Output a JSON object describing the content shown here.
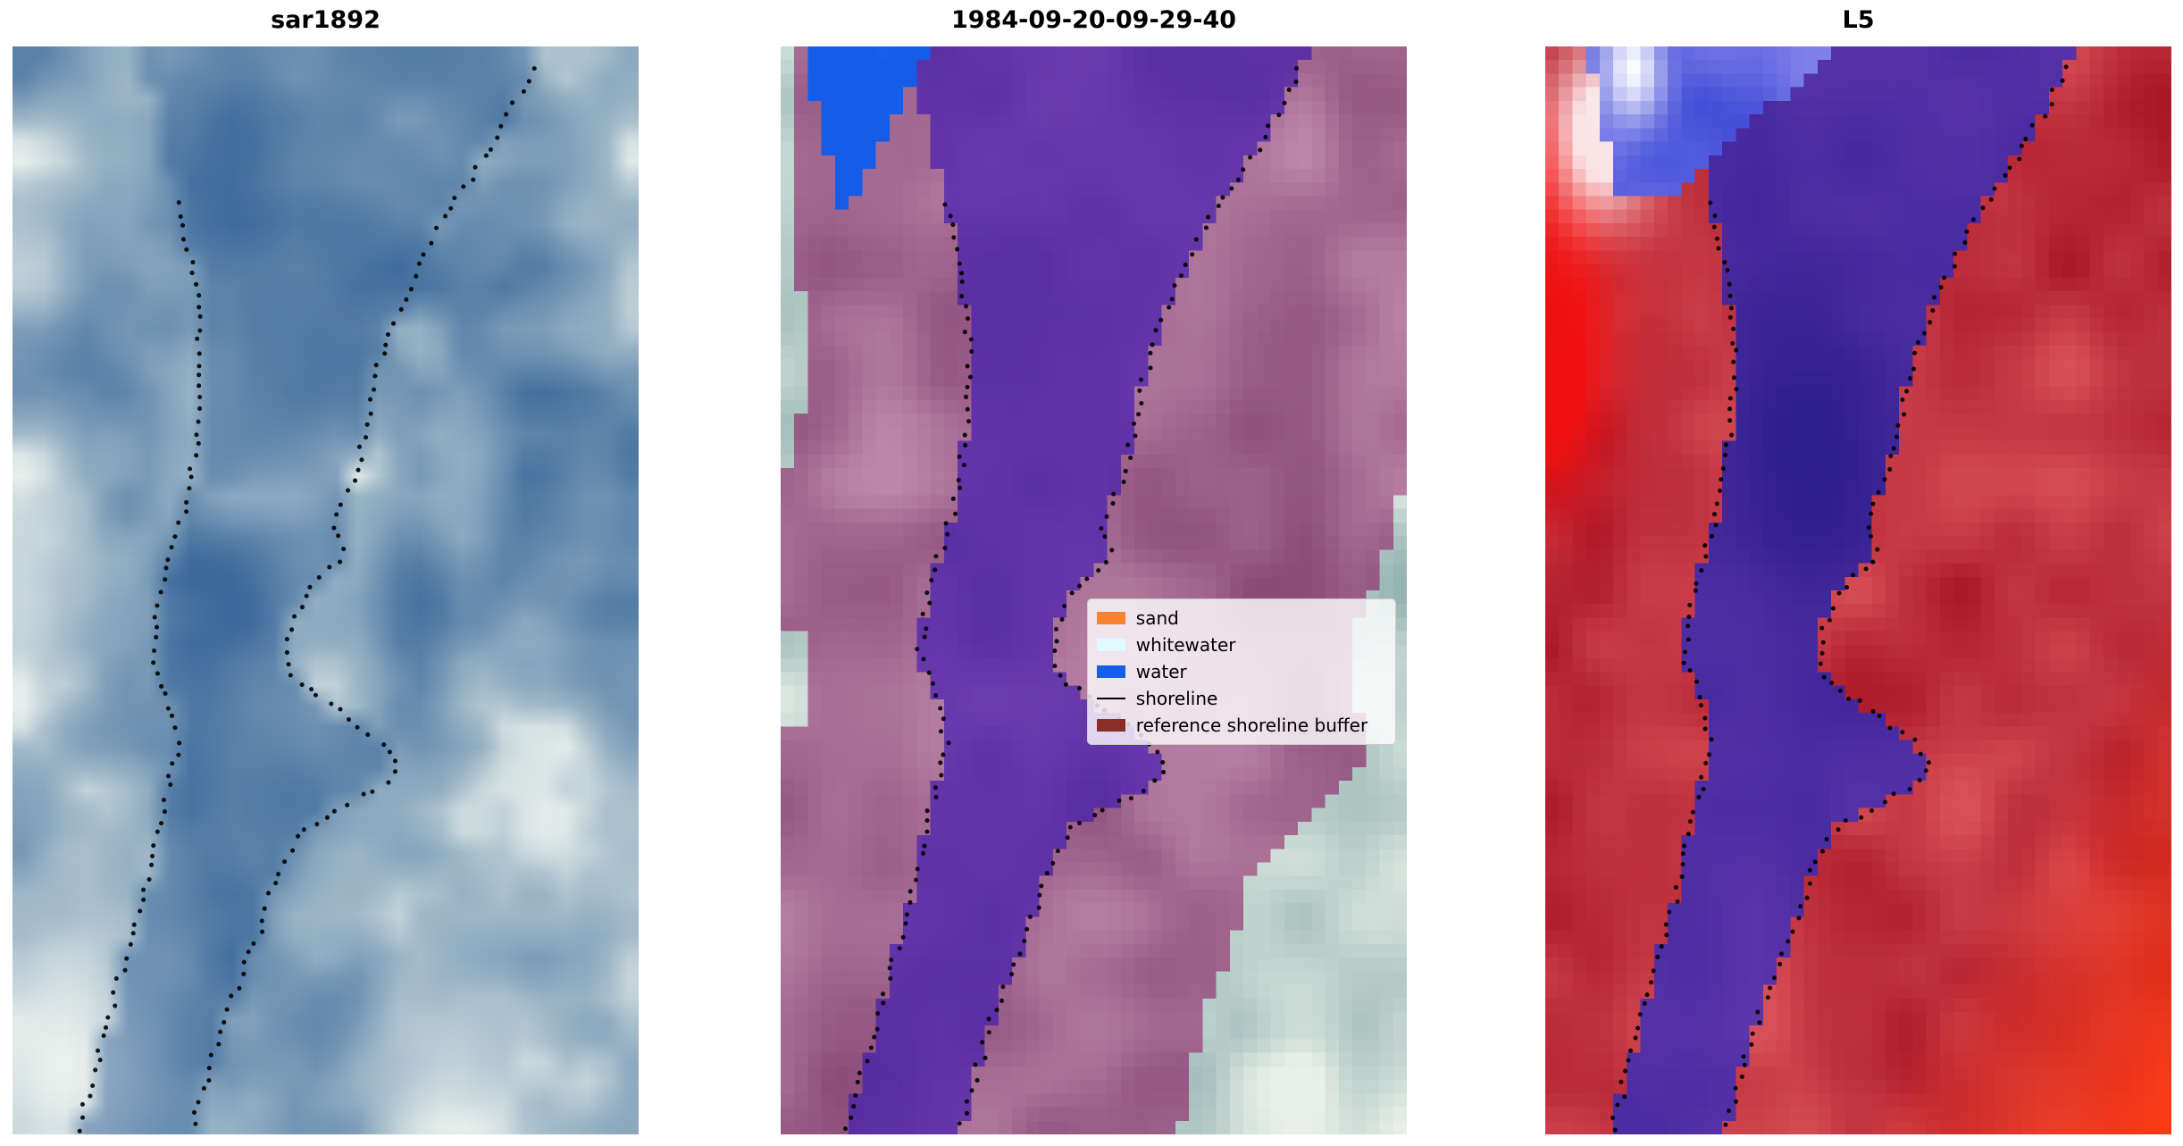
{
  "figure": {
    "background": "#ffffff"
  },
  "chart_data": {
    "type": "heatmap",
    "description": "Three-panel coastal shoreline-mapping figure: a SAR backscatter image (sar1892), a classified optical scene (1984-09-20-09-29-40) with class legend and reference shoreline buffer overlay, and a Landsat 5 (L5) false-colour scene. A black dotted line traces the mapped shoreline of a river channel in every panel.",
    "shoreline_color": "#000000",
    "panels": [
      {
        "title": "sar1892",
        "kind": "sar_backscatter_image",
        "palette": {
          "dark": "#3f6c9c",
          "light": "#c2d4d8",
          "white": "#f0f5f0",
          "channel": "#2e5e95"
        }
      },
      {
        "title": "1984-09-20-09-29-40",
        "kind": "classified_scene_with_buffer_overlay",
        "palette": {
          "base_dark": "#8fb0ae",
          "base_light": "#e9f0e9",
          "mauve_dark": "#8a4a78",
          "mauve_light": "#bc86a8",
          "purple_dark": "#54289e",
          "purple_light": "#6e3eb0",
          "water_blue": "#155ce8",
          "whitewater": "#d8f2f6"
        }
      },
      {
        "title": "L5",
        "kind": "landsat5_false_colour_image",
        "palette": {
          "land_dark": "#a81526",
          "land_light": "#d94f57",
          "bright_red": "#f20d0d",
          "white": "#fceef0",
          "blue_dark": "#2030cf",
          "blue_light": "#8a8aec",
          "purple_dark": "#41249b",
          "purple_light": "#5d37ad",
          "deep_navy": "#271a87",
          "corner_orange": "#ff3a10"
        }
      }
    ],
    "legend": {
      "position": "center-right of middle panel",
      "items": [
        {
          "label": "sand",
          "color": "#f9822f",
          "kind": "patch"
        },
        {
          "label": "whitewater",
          "color": "#e0fbff",
          "kind": "patch"
        },
        {
          "label": "water",
          "color": "#1560e8",
          "kind": "patch"
        },
        {
          "label": "shoreline",
          "color": "#000000",
          "kind": "line"
        },
        {
          "label": "reference shoreline buffer",
          "color": "#8b2d26",
          "kind": "patch"
        }
      ]
    },
    "shoreline_left_vu": [
      [
        0,
        0.2
      ],
      [
        0.06,
        0.225
      ],
      [
        0.12,
        0.252
      ],
      [
        0.18,
        0.278
      ],
      [
        0.24,
        0.296
      ],
      [
        0.3,
        0.303
      ],
      [
        0.36,
        0.295
      ],
      [
        0.42,
        0.278
      ],
      [
        0.47,
        0.252
      ],
      [
        0.52,
        0.23
      ],
      [
        0.56,
        0.222
      ],
      [
        0.6,
        0.248
      ],
      [
        0.64,
        0.266
      ],
      [
        0.68,
        0.248
      ],
      [
        0.72,
        0.23
      ],
      [
        0.78,
        0.21
      ],
      [
        0.84,
        0.18
      ],
      [
        0.9,
        0.15
      ],
      [
        0.95,
        0.128
      ],
      [
        1,
        0.105
      ]
    ],
    "shoreline_right_vu": [
      [
        0,
        0.845
      ],
      [
        0.05,
        0.805
      ],
      [
        0.1,
        0.755
      ],
      [
        0.15,
        0.695
      ],
      [
        0.2,
        0.65
      ],
      [
        0.25,
        0.612
      ],
      [
        0.3,
        0.582
      ],
      [
        0.35,
        0.565
      ],
      [
        0.4,
        0.545
      ],
      [
        0.44,
        0.512
      ],
      [
        0.47,
        0.53
      ],
      [
        0.5,
        0.47
      ],
      [
        0.54,
        0.438
      ],
      [
        0.58,
        0.445
      ],
      [
        0.61,
        0.52
      ],
      [
        0.64,
        0.59
      ],
      [
        0.66,
        0.615
      ],
      [
        0.68,
        0.59
      ],
      [
        0.7,
        0.52
      ],
      [
        0.72,
        0.462
      ],
      [
        0.75,
        0.432
      ],
      [
        0.8,
        0.402
      ],
      [
        0.85,
        0.368
      ],
      [
        0.9,
        0.335
      ],
      [
        0.95,
        0.31
      ],
      [
        1,
        0.285
      ]
    ],
    "buffer_left_vu": [
      [
        0,
        0.025
      ],
      [
        0.3,
        0.035
      ],
      [
        0.38,
        0.03
      ],
      [
        0.42,
        -0.05
      ],
      [
        1,
        -0.05
      ]
    ],
    "buffer_right_vu": [
      [
        0,
        1.15
      ],
      [
        0.35,
        1.02
      ],
      [
        0.5,
        0.95
      ],
      [
        0.55,
        0.905
      ],
      [
        0.6,
        0.915
      ],
      [
        0.65,
        0.95
      ],
      [
        0.7,
        0.85
      ],
      [
        0.76,
        0.75
      ],
      [
        0.83,
        0.718
      ],
      [
        0.9,
        0.67
      ],
      [
        1,
        0.635
      ]
    ],
    "top_water_patch_panel2": {
      "v_max": 0.165,
      "u_left": [
        0.03,
        0.45
      ],
      "u_right": [
        0.24,
        -0.9
      ]
    },
    "top_water_patch_panel3": {
      "v_max": 0.135,
      "u_left": [
        0.065,
        0.4
      ],
      "u_right": [
        0.47,
        -2.0
      ]
    }
  }
}
